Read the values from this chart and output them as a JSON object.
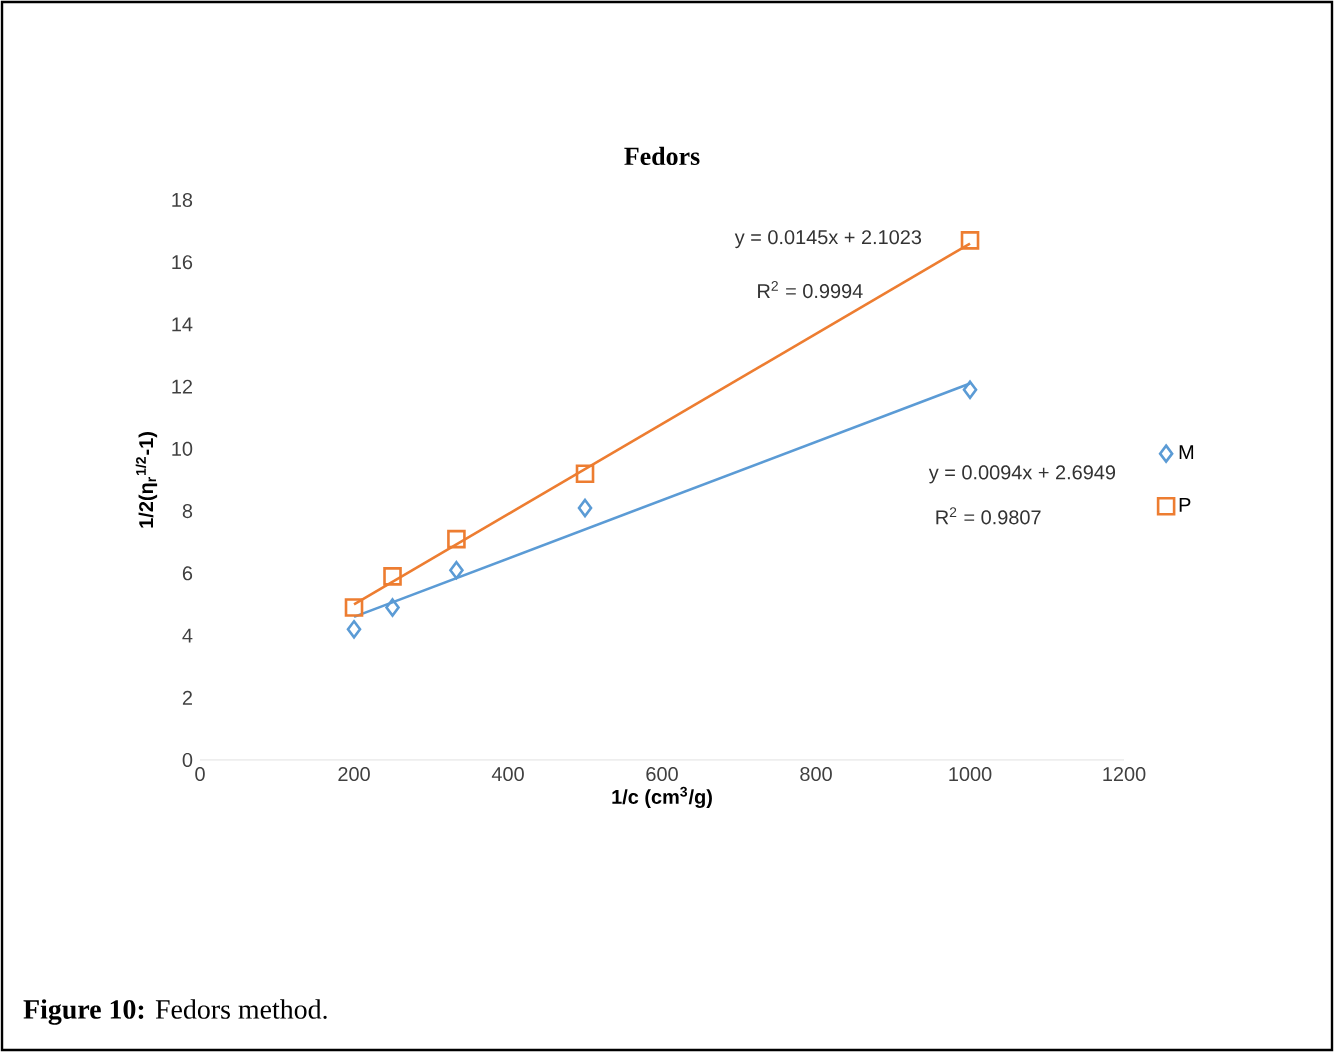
{
  "chart_data": {
    "type": "scatter",
    "title": "Fedors",
    "xlabel": "1/c (cm$^{3}$/g)",
    "ylabel": "1/2(η$_{r}$$^{1/2}$-1)",
    "xlim": [
      0,
      1200
    ],
    "xticks": [
      0,
      200,
      400,
      600,
      800,
      1000,
      1200
    ],
    "ylim": [
      0,
      18
    ],
    "yticks": [
      0,
      2,
      4,
      6,
      8,
      10,
      12,
      14,
      16,
      18
    ],
    "grid": false,
    "legend": "right",
    "series": [
      {
        "name": "M",
        "marker": "diamond",
        "color": "#5b9bd5",
        "x": [
          200,
          250,
          333,
          500,
          1000
        ],
        "values": [
          4.2,
          4.9,
          6.1,
          8.1,
          11.9
        ]
      },
      {
        "name": "P",
        "marker": "square",
        "color": "#ed7d31",
        "x": [
          200,
          250,
          333,
          500,
          1000
        ],
        "values": [
          4.9,
          5.9,
          7.1,
          9.2,
          16.7
        ]
      },
      {
        "type": "line",
        "marker": "none",
        "color": "#5b9bd5",
        "x": [
          200,
          1000
        ],
        "values": [
          4.6,
          12.1
        ]
      },
      {
        "type": "line",
        "marker": "none",
        "color": "#ed7d31",
        "x": [
          200,
          1000
        ],
        "values": [
          5.0,
          16.6
        ]
      }
    ],
    "annotations": [
      "y = 0.0145x + 2.1023",
      "R$^{2}$ = 0.9994",
      "y = 0.0094x + 2.6949",
      "R$^{2}$ = 0.9807",
      "**Figure 10:** Fedors method."
    ]
  }
}
